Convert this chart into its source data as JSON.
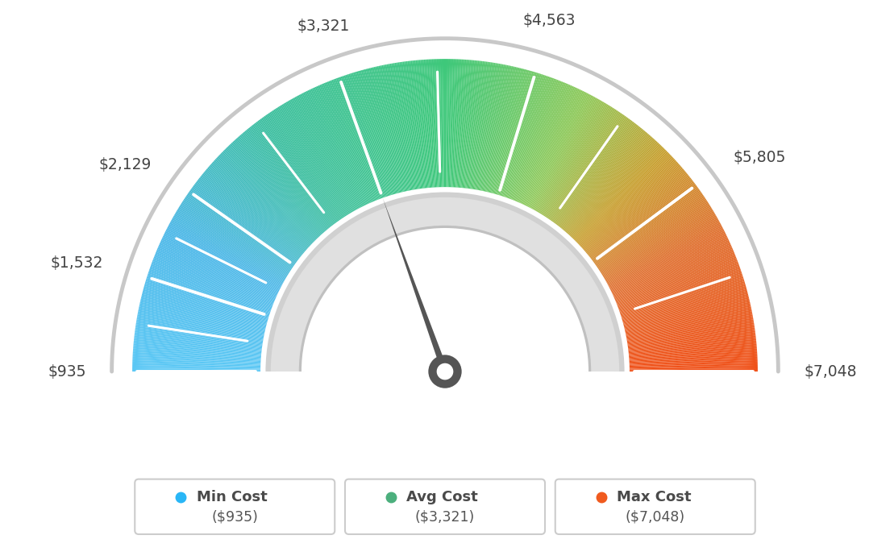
{
  "min_value": 935,
  "max_value": 7048,
  "avg_value": 3321,
  "labels": [
    "$935",
    "$1,532",
    "$2,129",
    "$3,321",
    "$4,563",
    "$5,805",
    "$7,048"
  ],
  "label_values": [
    935,
    1532,
    2129,
    3321,
    4563,
    5805,
    7048
  ],
  "min_cost_label": "Min Cost",
  "avg_cost_label": "Avg Cost",
  "max_cost_label": "Max Cost",
  "min_cost_value": "($935)",
  "avg_cost_value": "($3,321)",
  "max_cost_value": "($7,048)",
  "min_color": "#29b6f6",
  "avg_color": "#4caf7d",
  "max_color": "#f05a1e",
  "background_color": "#ffffff",
  "needle_value": 3321,
  "color_stops": [
    [
      0.0,
      "#5bc8f5"
    ],
    [
      0.15,
      "#4db8e8"
    ],
    [
      0.3,
      "#3dbfa0"
    ],
    [
      0.5,
      "#3ec87a"
    ],
    [
      0.65,
      "#8fc95a"
    ],
    [
      0.75,
      "#c8a030"
    ],
    [
      0.85,
      "#e07030"
    ],
    [
      1.0,
      "#f05018"
    ]
  ]
}
